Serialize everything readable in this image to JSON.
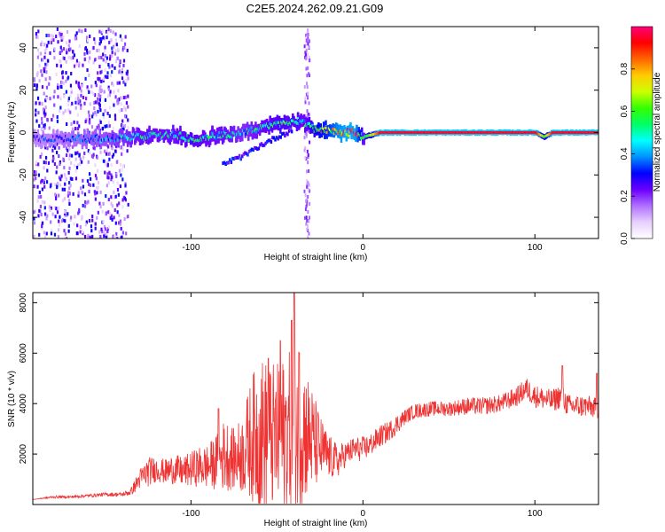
{
  "title": "C2E5.2024.262.09.21.G09",
  "chart_data": [
    {
      "type": "heatmap",
      "xlabel": "Height of straight line (km)",
      "ylabel": "Frequency (Hz)",
      "xlim": [
        -192,
        137
      ],
      "ylim": [
        -50,
        50
      ],
      "xticks": [
        "-100",
        "0",
        "100"
      ],
      "yticks": [
        "-40",
        "-20",
        "0",
        "20",
        "40"
      ],
      "colorbar": {
        "label": "Normalized spectral amplitude",
        "range": [
          0,
          1
        ],
        "ticks": [
          "0.0",
          "0.2",
          "0.4",
          "0.6",
          "0.8"
        ],
        "colors": [
          "#ffffff",
          "#e8d0ff",
          "#b070ff",
          "#6a00ff",
          "#0000ff",
          "#0090ff",
          "#00ffff",
          "#00ff66",
          "#33ff00",
          "#ccff00",
          "#ffcc00",
          "#ff6600",
          "#ff0000",
          "#ff0077"
        ]
      },
      "ridge": {
        "x": [
          -192,
          -170,
          -150,
          -130,
          -110,
          -100,
          -90,
          -80,
          -70,
          -60,
          -50,
          -40,
          -35,
          -30,
          -25,
          -20,
          -15,
          -10,
          -5,
          0,
          10,
          50,
          100,
          105,
          110,
          137
        ],
        "frequency": [
          -3,
          -3,
          -3,
          -2,
          -1,
          -3,
          -2,
          -1,
          0,
          2,
          4,
          6,
          5,
          2,
          1,
          1,
          0,
          0,
          0,
          -2,
          0,
          0,
          0,
          -2,
          0,
          0
        ],
        "amplitude": [
          0.3,
          0.35,
          0.4,
          0.5,
          0.5,
          0.55,
          0.5,
          0.5,
          0.45,
          0.5,
          0.55,
          0.55,
          0.5,
          0.6,
          0.7,
          0.75,
          0.85,
          0.9,
          0.9,
          0.5,
          0.95,
          0.95,
          0.95,
          0.6,
          0.95,
          0.95
        ]
      },
      "secondary_track": {
        "x": [
          -82,
          -70,
          -60,
          -50,
          -42
        ],
        "frequency": [
          -15,
          -11,
          -6,
          -2,
          1
        ]
      }
    },
    {
      "type": "line",
      "xlabel": "Height of straight line (km)",
      "ylabel": "SNR (10 * v/v)",
      "xlim": [
        -192,
        137
      ],
      "ylim": [
        0,
        8400
      ],
      "xticks": [
        "-100",
        "0",
        "100"
      ],
      "yticks": [
        "2000",
        "4000",
        "6000",
        "8000"
      ],
      "color": "#ee3333",
      "series": [
        {
          "x": [
            -192,
            -180,
            -170,
            -160,
            -150,
            -140,
            -135,
            -130,
            -125,
            -120,
            -115,
            -110,
            -105,
            -100,
            -95,
            -90,
            -85,
            -80,
            -75,
            -70,
            -65,
            -60,
            -55,
            -50,
            -45,
            -40,
            -37,
            -35,
            -30,
            -25,
            -20,
            -15,
            -10,
            -5,
            0,
            5,
            10,
            15,
            20,
            25,
            30,
            40,
            50,
            60,
            70,
            80,
            90,
            95,
            100,
            110,
            115,
            120,
            130,
            137
          ],
          "y": [
            200,
            300,
            300,
            350,
            400,
            400,
            500,
            1000,
            1300,
            1400,
            1300,
            1400,
            1300,
            1400,
            1500,
            1500,
            1700,
            2000,
            1800,
            2000,
            2600,
            2800,
            2700,
            2600,
            2800,
            3000,
            3200,
            3000,
            2600,
            2200,
            1900,
            1700,
            2000,
            2200,
            2200,
            2400,
            2700,
            2900,
            3200,
            3500,
            3700,
            3800,
            3800,
            3900,
            3900,
            4000,
            4300,
            4600,
            4300,
            4100,
            4300,
            3900,
            3900,
            3800
          ],
          "noise": [
            0,
            50,
            50,
            60,
            80,
            80,
            150,
            400,
            600,
            500,
            500,
            600,
            600,
            700,
            800,
            900,
            1100,
            1500,
            1200,
            1600,
            2400,
            3200,
            3000,
            3000,
            3200,
            3200,
            3800,
            3000,
            2200,
            1400,
            900,
            700,
            500,
            500,
            500,
            450,
            450,
            400,
            400,
            300,
            300,
            300,
            300,
            350,
            350,
            350,
            400,
            450,
            450,
            450,
            500,
            450,
            450,
            400
          ],
          "peaks": [
            {
              "x": -40,
              "y": 8400
            },
            {
              "x": -41.5,
              "y": 7300
            },
            {
              "x": -48,
              "y": 6500
            },
            {
              "x": -55,
              "y": 5800
            },
            {
              "x": -37,
              "y": 6000
            },
            {
              "x": -84,
              "y": 3800
            },
            {
              "x": 116,
              "y": 5500
            },
            {
              "x": 136,
              "y": 5200
            }
          ]
        }
      ]
    }
  ]
}
